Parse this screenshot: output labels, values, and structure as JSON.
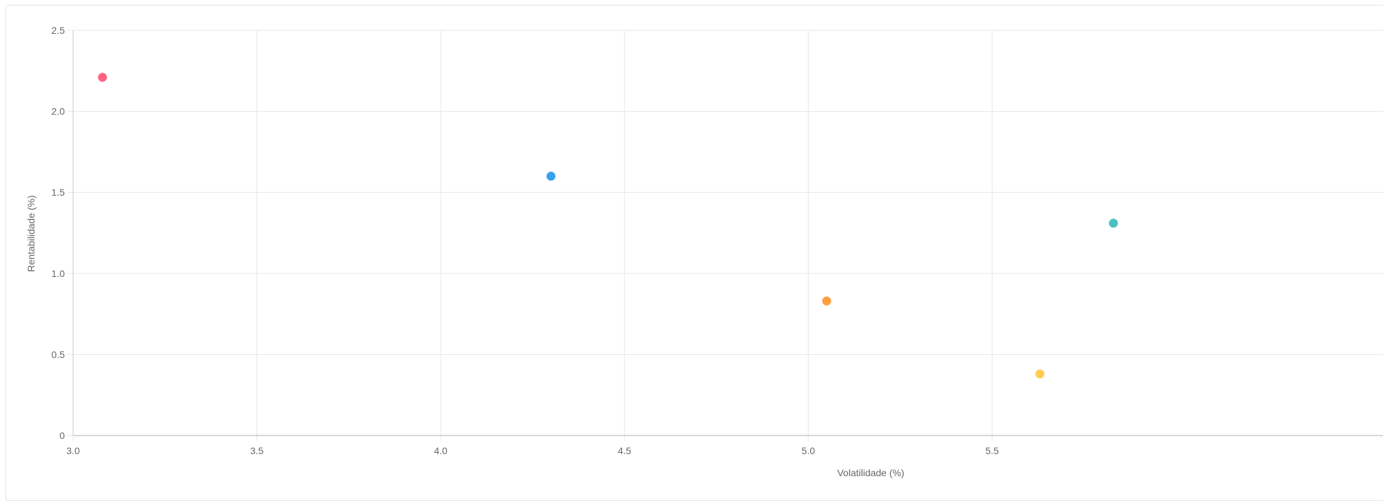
{
  "chart_data": {
    "type": "scatter",
    "title": "",
    "xlabel": "Volatilidade (%)",
    "ylabel": "Rentabilidade (%)",
    "xlim": [
      3.0,
      5.85
    ],
    "ylim": [
      0,
      2.5
    ],
    "x_ticks": [
      {
        "value": 3.0,
        "label": "3.0"
      },
      {
        "value": 3.5,
        "label": "3.5"
      },
      {
        "value": 4.0,
        "label": "4.0"
      },
      {
        "value": 4.5,
        "label": "4.5"
      },
      {
        "value": 5.0,
        "label": "5.0"
      },
      {
        "value": 5.5,
        "label": "5.5"
      }
    ],
    "y_ticks": [
      {
        "value": 0,
        "label": "0"
      },
      {
        "value": 0.5,
        "label": "0.5"
      },
      {
        "value": 1.0,
        "label": "1.0"
      },
      {
        "value": 1.5,
        "label": "1.5"
      },
      {
        "value": 2.0,
        "label": "2.0"
      },
      {
        "value": 2.5,
        "label": "2.5"
      }
    ],
    "grid": true,
    "legend": "none",
    "points": [
      {
        "x": 3.08,
        "y": 2.21,
        "color": "#ff6384"
      },
      {
        "x": 4.3,
        "y": 1.6,
        "color": "#36a2eb"
      },
      {
        "x": 5.05,
        "y": 0.83,
        "color": "#ff9f40"
      },
      {
        "x": 5.63,
        "y": 0.38,
        "color": "#ffcd56"
      },
      {
        "x": 5.83,
        "y": 1.31,
        "color": "#4bc0c0"
      }
    ],
    "grid_color": "#e6e6e6",
    "axis_color": "#c8c8c8"
  }
}
